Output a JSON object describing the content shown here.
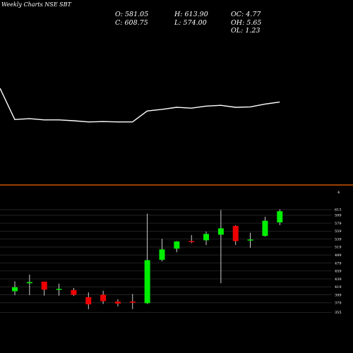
{
  "header": {
    "title": "MunafaSutra.com Weekly Charts NSE SBT",
    "title_display": "Weekly Charts NSE SBT"
  },
  "ohlc_display": {
    "open": "O: 581.05",
    "high": "H: 613.90",
    "oc": "OC: 4.77",
    "close": "C: 608.75",
    "low": "L: 574.00",
    "oh": "OH: 5.65",
    "ol": "OL: 1.23"
  },
  "colors": {
    "background": "#000000",
    "up": "#00ee00",
    "down": "#ee0000",
    "line": "#ffffff",
    "separator": "#cc5500",
    "grid": "#2a2a2a"
  },
  "marker": "4",
  "chart_data": {
    "type": "candlestick",
    "yticks": [
      355,
      379,
      399,
      419,
      439,
      459,
      479,
      499,
      519,
      539,
      559,
      579,
      599,
      613
    ],
    "ylim": [
      345,
      620
    ],
    "candles": [
      {
        "o": 408,
        "h": 433,
        "l": 398,
        "c": 418
      },
      {
        "o": 428,
        "h": 450,
        "l": 398,
        "c": 431
      },
      {
        "o": 432,
        "h": 432,
        "l": 397,
        "c": 412
      },
      {
        "o": 413,
        "h": 427,
        "l": 397,
        "c": 414
      },
      {
        "o": 411,
        "h": 416,
        "l": 396,
        "c": 399
      },
      {
        "o": 393,
        "h": 405,
        "l": 363,
        "c": 375
      },
      {
        "o": 399,
        "h": 409,
        "l": 376,
        "c": 383
      },
      {
        "o": 382,
        "h": 388,
        "l": 370,
        "c": 377
      },
      {
        "o": 382,
        "h": 401,
        "l": 363,
        "c": 379
      },
      {
        "o": 378,
        "h": 603,
        "l": 376,
        "c": 486
      },
      {
        "o": 487,
        "h": 540,
        "l": 483,
        "c": 513
      },
      {
        "o": 515,
        "h": 534,
        "l": 506,
        "c": 533
      },
      {
        "o": 534,
        "h": 549,
        "l": 529,
        "c": 532
      },
      {
        "o": 536,
        "h": 558,
        "l": 524,
        "c": 552
      },
      {
        "o": 550,
        "h": 612,
        "l": 428,
        "c": 566
      },
      {
        "o": 572,
        "h": 574,
        "l": 524,
        "c": 534
      },
      {
        "o": 537,
        "h": 555,
        "l": 517,
        "c": 538
      },
      {
        "o": 547,
        "h": 595,
        "l": 545,
        "c": 585
      },
      {
        "o": 581,
        "h": 614,
        "l": 574,
        "c": 609
      }
    ],
    "close_line": [
      590,
      513,
      515,
      512,
      512,
      510,
      507,
      508,
      507,
      507,
      534,
      538,
      543,
      541,
      546,
      548,
      543,
      544,
      551,
      556
    ]
  }
}
